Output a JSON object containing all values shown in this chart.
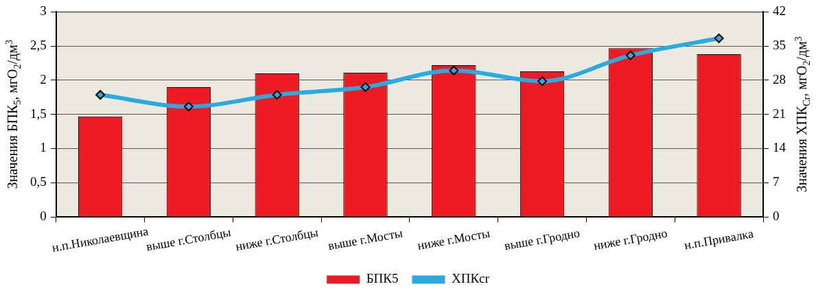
{
  "chart_data": {
    "type": "bar",
    "categories": [
      "н.п.Николаевщина",
      "выше г.Столбцы",
      "ниже г.Столбцы",
      "выше г.Мосты",
      "ниже г.Мосты",
      "выше г.Гродно",
      "ниже г.Гродно",
      "н.п.Привалка"
    ],
    "series": [
      {
        "name": "БПК5",
        "color": "#ed1c24",
        "values": [
          1.47,
          1.9,
          2.1,
          2.11,
          2.22,
          2.13,
          2.47,
          2.38
        ]
      },
      {
        "name": "ХПКcr",
        "type": "line",
        "axis": "y2",
        "color": "#29abe2",
        "marker": "diamond",
        "line_style": "solid",
        "values": [
          25,
          22.6,
          25,
          26.6,
          30,
          27.8,
          33.1,
          36.6
        ]
      }
    ],
    "ylabel": "Значения БПК$_{5}$, мгO$_{2}$/дм$^{3}$",
    "y2label": "Значения ХПК$_{Cr}$, мгO$_{2}$/дм$^{3}$",
    "ylim": [
      0,
      3
    ],
    "yticks": [
      0,
      {
        "value": 0.5,
        "label": "0,5"
      },
      1,
      {
        "value": 1.5,
        "label": "1,5"
      },
      2,
      {
        "value": 2.5,
        "label": "2,5"
      },
      3
    ],
    "y2lim": [
      0,
      42
    ],
    "y2ticks": [
      0,
      7,
      14,
      21,
      28,
      35,
      42
    ],
    "grid": "y",
    "legend": "bottom"
  }
}
